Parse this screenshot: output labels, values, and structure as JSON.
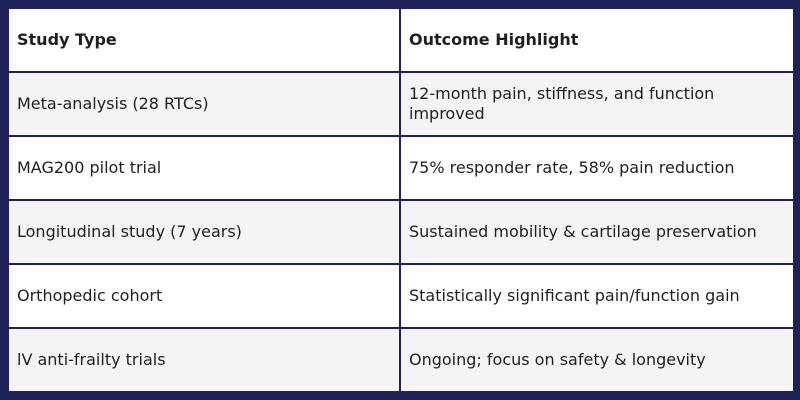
{
  "table": {
    "headers": [
      "Study Type",
      "Outcome Highlight"
    ],
    "rows": [
      {
        "study_type": "Meta-analysis (28 RTCs)",
        "outcome": "12-month pain, stiffness, and function improved"
      },
      {
        "study_type": "MAG200 pilot trial",
        "outcome": "75% responder rate, 58% pain reduction"
      },
      {
        "study_type": "Longitudinal study (7 years)",
        "outcome": "Sustained mobility & cartilage preservation"
      },
      {
        "study_type": "Orthopedic cohort",
        "outcome": "Statistically significant pain/function gain"
      },
      {
        "study_type": "lV anti-frailty trials",
        "outcome": "Ongoing; focus on safety & longevity"
      }
    ]
  },
  "colors": {
    "border": "#1e2258",
    "row_alt": "#f4f4f4",
    "row": "#ffffff",
    "text": "#1f1f1f"
  }
}
